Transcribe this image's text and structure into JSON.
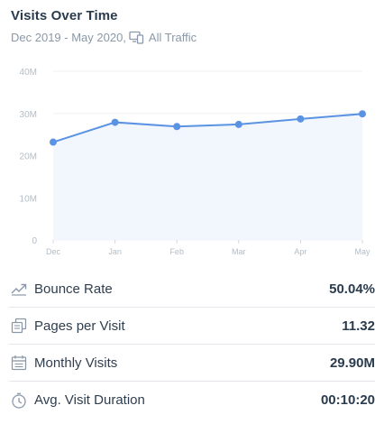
{
  "header": {
    "title": "Visits Over Time",
    "date_range": "Dec 2019 - May 2020,",
    "traffic_label": "All Traffic",
    "traffic_icon": "devices-icon"
  },
  "chart_data": {
    "type": "area",
    "title": "",
    "xlabel": "",
    "ylabel": "",
    "categories": [
      "Dec",
      "Jan",
      "Feb",
      "Mar",
      "Apr",
      "May"
    ],
    "series": [
      {
        "values": [
          23200000,
          27900000,
          26900000,
          27400000,
          28700000,
          29900000
        ]
      }
    ],
    "y_ticks": [
      "0",
      "10M",
      "20M",
      "30M",
      "40M"
    ],
    "ylim": [
      0,
      40000000
    ],
    "grid": true,
    "colors": {
      "line": "#5b93e3",
      "fill": "#f2f6fd",
      "grid": "#eef1f4",
      "tick": "#b3bcc6"
    }
  },
  "metrics": [
    {
      "icon": "trend-up-icon",
      "label": "Bounce Rate",
      "value": "50.04%"
    },
    {
      "icon": "pages-icon",
      "label": "Pages per Visit",
      "value": "11.32"
    },
    {
      "icon": "calendar-icon",
      "label": "Monthly Visits",
      "value": "29.90M"
    },
    {
      "icon": "clock-icon",
      "label": "Avg. Visit Duration",
      "value": "00:10:20"
    }
  ]
}
